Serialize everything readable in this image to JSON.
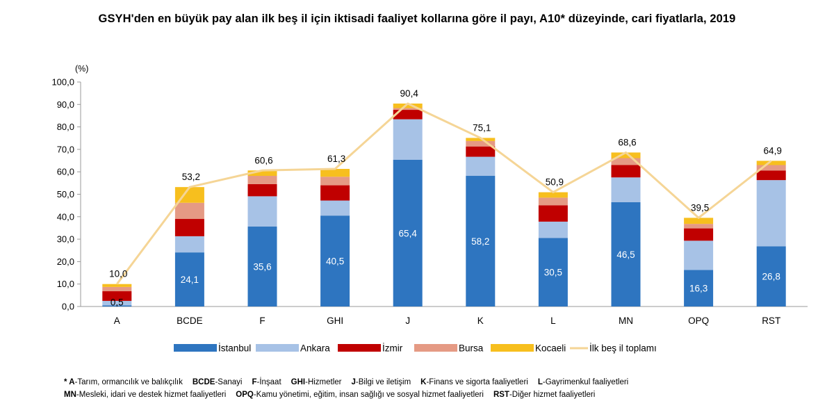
{
  "title": "GSYH'den en büyük pay alan ilk beş il için iktisadi faaliyet kollarına göre il payı, A10* düzeyinde, cari fiyatlarla, 2019",
  "chart_data": {
    "type": "bar",
    "stacked": true,
    "ylabel": "(%)",
    "ylim": [
      0,
      100
    ],
    "yticks": [
      "0,0",
      "10,0",
      "20,0",
      "30,0",
      "40,0",
      "50,0",
      "60,0",
      "70,0",
      "80,0",
      "90,0",
      "100,0"
    ],
    "categories": [
      "A",
      "BCDE",
      "F",
      "GHI",
      "J",
      "K",
      "L",
      "MN",
      "OPQ",
      "RST"
    ],
    "series": [
      {
        "name": "İstanbul",
        "color": "#2E75C0",
        "values": [
          0.5,
          24.1,
          35.6,
          40.5,
          65.4,
          58.2,
          30.5,
          46.5,
          16.3,
          26.8
        ],
        "labels": [
          "0,5",
          "24,1",
          "35,6",
          "40,5",
          "65,4",
          "58,2",
          "30,5",
          "46,5",
          "16,3",
          "26,8"
        ]
      },
      {
        "name": "Ankara",
        "color": "#A7C2E6",
        "values": [
          2.0,
          7.2,
          13.5,
          6.7,
          18.0,
          8.5,
          7.3,
          11.0,
          13.0,
          29.5
        ]
      },
      {
        "name": "İzmir",
        "color": "#C00000",
        "values": [
          4.3,
          7.7,
          5.4,
          6.8,
          4.2,
          4.6,
          7.3,
          5.5,
          5.5,
          4.3
        ]
      },
      {
        "name": "Bursa",
        "color": "#E59A84",
        "values": [
          1.9,
          7.2,
          3.7,
          3.8,
          0.8,
          2.4,
          3.4,
          3.1,
          2.0,
          2.4
        ]
      },
      {
        "name": "Kocaeli",
        "color": "#F7BF1E",
        "values": [
          1.3,
          7.0,
          2.4,
          3.5,
          2.0,
          1.4,
          2.4,
          2.5,
          2.7,
          1.9
        ]
      }
    ],
    "line": {
      "name": "İlk beş il toplamı",
      "color": "#F5D596",
      "values": [
        10.0,
        53.2,
        60.6,
        61.3,
        90.4,
        75.1,
        50.9,
        68.6,
        39.5,
        64.9
      ],
      "labels": [
        "10,0",
        "53,2",
        "60,6",
        "61,3",
        "90,4",
        "75,1",
        "50,9",
        "68,6",
        "39,5",
        "64,9"
      ]
    },
    "legend_position": "bottom"
  },
  "footnote": {
    "line1": [
      {
        "code": "* A",
        "text": "-Tarım, ormancılık ve balıkçılık"
      },
      {
        "code": "BCDE",
        "text": "-Sanayi"
      },
      {
        "code": "F",
        "text": "-İnşaat"
      },
      {
        "code": "GHI",
        "text": "-Hizmetler"
      },
      {
        "code": "J",
        "text": "-Bilgi ve iletişim"
      },
      {
        "code": "K",
        "text": "-Finans ve sigorta faaliyetleri"
      },
      {
        "code": "L",
        "text": "-Gayrimenkul faaliyetleri"
      }
    ],
    "line2": [
      {
        "code": "MN",
        "text": "-Mesleki, idari ve destek hizmet faaliyetleri"
      },
      {
        "code": "OPQ",
        "text": "-Kamu yönetimi, eğitim, insan sağlığı ve sosyal hizmet faaliyetleri"
      },
      {
        "code": "RST",
        "text": "-Diğer hizmet faaliyetleri"
      }
    ]
  }
}
